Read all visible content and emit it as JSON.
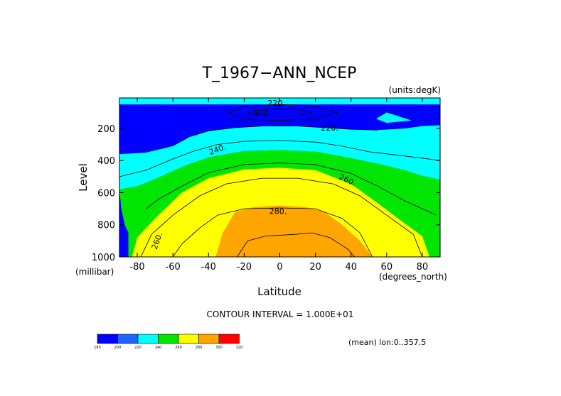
{
  "chart_data": {
    "type": "heatmap",
    "subtype": "filled-contour",
    "title": "T_1967−ANN_NCEP",
    "units_label": "(units:degK)",
    "xlabel": "Latitude",
    "ylabel": "Level",
    "x_units_label": "(degrees_north)",
    "y_units_label": "(millibar)",
    "xlim": [
      -90,
      90
    ],
    "ylim": [
      1000,
      10
    ],
    "x_ticks": [
      -80,
      -60,
      -40,
      -20,
      0,
      20,
      40,
      60,
      80
    ],
    "x_tick_labels": [
      "-80",
      "-60",
      "-40",
      "-20",
      "0",
      "20",
      "40",
      "60",
      "80"
    ],
    "y_ticks": [
      200,
      400,
      600,
      800,
      1000
    ],
    "y_tick_labels": [
      "200",
      "400",
      "600",
      "800",
      "1000"
    ],
    "contour_interval_label": "CONTOUR INTERVAL = 1.000E+01",
    "mean_label": "(mean) lon:0..357.5",
    "contour_labels": [
      {
        "text": "220.",
        "x": -2,
        "y": 40,
        "rot": 0
      },
      {
        "text": "200.",
        "x": -10,
        "y": 100,
        "rot": 0
      },
      {
        "text": "220.",
        "x": 28,
        "y": 195,
        "rot": 0
      },
      {
        "text": "240.",
        "x": -35,
        "y": 330,
        "rot": -20
      },
      {
        "text": "260.",
        "x": 38,
        "y": 520,
        "rot": 25
      },
      {
        "text": "280.",
        "x": -1,
        "y": 715,
        "rot": 0
      },
      {
        "text": "260.",
        "x": -69,
        "y": 900,
        "rot": -70
      }
    ],
    "levels": [
      {
        "label": "180",
        "color": "#0000ff"
      },
      {
        "label": "200",
        "color": "#1e64ff"
      },
      {
        "label": "220",
        "color": "#00ffff"
      },
      {
        "label": "240",
        "color": "#00e600"
      },
      {
        "label": "260",
        "color": "#ffff00"
      },
      {
        "label": "280",
        "color": "#ffa500"
      },
      {
        "label": "300",
        "color": "#ff0000"
      },
      {
        "label": "320",
        "color": ""
      }
    ],
    "regions": [
      {
        "value_range": "<200",
        "color": "#0000ff",
        "points": [
          [
            -18,
            100
          ],
          [
            -10,
            80
          ],
          [
            10,
            80
          ],
          [
            18,
            100
          ],
          [
            10,
            120
          ],
          [
            -10,
            120
          ]
        ]
      },
      {
        "value_range": "220-240",
        "color": "#00ffff",
        "points": [
          [
            -90,
            360
          ],
          [
            -75,
            350
          ],
          [
            -60,
            310
          ],
          [
            -50,
            250
          ],
          [
            -40,
            215
          ],
          [
            -25,
            195
          ],
          [
            -10,
            185
          ],
          [
            10,
            185
          ],
          [
            25,
            195
          ],
          [
            40,
            205
          ],
          [
            55,
            210
          ],
          [
            70,
            200
          ],
          [
            80,
            185
          ],
          [
            90,
            180
          ],
          [
            90,
            520
          ],
          [
            80,
            495
          ],
          [
            70,
            460
          ],
          [
            55,
            420
          ],
          [
            40,
            385
          ],
          [
            20,
            345
          ],
          [
            0,
            335
          ],
          [
            -20,
            340
          ],
          [
            -40,
            380
          ],
          [
            -55,
            440
          ],
          [
            -70,
            515
          ],
          [
            -80,
            560
          ],
          [
            -90,
            580
          ]
        ]
      },
      {
        "value_range": "220-240",
        "color": "#00ffff",
        "points": [
          [
            -90,
            10
          ],
          [
            90,
            10
          ],
          [
            90,
            50
          ],
          [
            -90,
            50
          ]
        ]
      },
      {
        "value_range": "220-240",
        "color": "#00ffff",
        "points": [
          [
            54,
            140
          ],
          [
            60,
            100
          ],
          [
            74,
            150
          ],
          [
            60,
            165
          ]
        ]
      },
      {
        "value_range": "240-260",
        "color": "#00e600",
        "points": [
          [
            -89,
            700
          ],
          [
            -90,
            580
          ],
          [
            -80,
            560
          ],
          [
            -70,
            515
          ],
          [
            -55,
            440
          ],
          [
            -40,
            380
          ],
          [
            -20,
            340
          ],
          [
            0,
            335
          ],
          [
            20,
            345
          ],
          [
            40,
            385
          ],
          [
            55,
            420
          ],
          [
            70,
            460
          ],
          [
            80,
            495
          ],
          [
            90,
            520
          ],
          [
            90,
            1000
          ],
          [
            -85,
            1000
          ],
          [
            -85,
            850
          ],
          [
            -87,
            800
          ]
        ]
      },
      {
        "value_range": "260-270",
        "color": "#ffff00",
        "points": [
          [
            -83,
            1000
          ],
          [
            -80,
            880
          ],
          [
            -70,
            760
          ],
          [
            -55,
            600
          ],
          [
            -40,
            510
          ],
          [
            -20,
            455
          ],
          [
            0,
            445
          ],
          [
            20,
            460
          ],
          [
            40,
            545
          ],
          [
            55,
            665
          ],
          [
            70,
            790
          ],
          [
            80,
            870
          ],
          [
            84,
            1000
          ]
        ]
      },
      {
        "value_range": "270-280",
        "color": "#ffff00",
        "points": [
          [
            -71,
            1000
          ],
          [
            -65,
            880
          ],
          [
            -55,
            780
          ],
          [
            -40,
            640
          ],
          [
            -20,
            555
          ],
          [
            0,
            540
          ],
          [
            20,
            560
          ],
          [
            40,
            660
          ],
          [
            55,
            780
          ],
          [
            65,
            880
          ],
          [
            72,
            1000
          ]
        ]
      },
      {
        "value_range": "280-290",
        "color": "#ffa500",
        "points": [
          [
            -36,
            1000
          ],
          [
            -32,
            850
          ],
          [
            -25,
            720
          ],
          [
            -15,
            690
          ],
          [
            0,
            680
          ],
          [
            15,
            690
          ],
          [
            25,
            720
          ],
          [
            35,
            800
          ],
          [
            45,
            900
          ],
          [
            52,
            1000
          ]
        ]
      },
      {
        "value_range": "290-300",
        "color": "#ffa500",
        "points": [
          [
            -24,
            1000
          ],
          [
            -18,
            900
          ],
          [
            -8,
            870
          ],
          [
            8,
            860
          ],
          [
            18,
            850
          ],
          [
            28,
            880
          ],
          [
            38,
            950
          ],
          [
            42,
            1000
          ]
        ]
      }
    ],
    "contour_lines": [
      [
        [
          -18,
          100
        ],
        [
          -10,
          80
        ],
        [
          10,
          80
        ],
        [
          18,
          100
        ],
        [
          10,
          120
        ],
        [
          -10,
          120
        ],
        [
          -18,
          100
        ]
      ],
      [
        [
          -28,
          100
        ],
        [
          -20,
          60
        ],
        [
          0,
          50
        ],
        [
          20,
          60
        ],
        [
          32,
          100
        ],
        [
          20,
          140
        ],
        [
          0,
          150
        ],
        [
          -20,
          140
        ],
        [
          -28,
          100
        ]
      ],
      [
        [
          -50,
          250
        ],
        [
          -40,
          215
        ],
        [
          -25,
          195
        ],
        [
          -10,
          185
        ],
        [
          10,
          185
        ],
        [
          25,
          195
        ],
        [
          40,
          205
        ],
        [
          55,
          210
        ]
      ],
      [
        [
          -90,
          500
        ],
        [
          -75,
          460
        ],
        [
          -60,
          390
        ],
        [
          -48,
          340
        ],
        [
          -35,
          300
        ],
        [
          -20,
          280
        ],
        [
          0,
          275
        ],
        [
          20,
          285
        ],
        [
          35,
          310
        ],
        [
          50,
          345
        ],
        [
          65,
          365
        ],
        [
          80,
          385
        ],
        [
          90,
          400
        ]
      ],
      [
        [
          -75,
          700
        ],
        [
          -68,
          640
        ],
        [
          -55,
          560
        ],
        [
          -40,
          475
        ],
        [
          -20,
          425
        ],
        [
          0,
          415
        ],
        [
          20,
          425
        ],
        [
          40,
          480
        ],
        [
          55,
          560
        ],
        [
          70,
          650
        ],
        [
          80,
          700
        ],
        [
          88,
          740
        ]
      ],
      [
        [
          -78,
          1000
        ],
        [
          -72,
          860
        ],
        [
          -60,
          740
        ],
        [
          -45,
          620
        ],
        [
          -30,
          545
        ],
        [
          -10,
          510
        ],
        [
          10,
          510
        ],
        [
          30,
          545
        ],
        [
          45,
          620
        ],
        [
          60,
          740
        ],
        [
          75,
          860
        ],
        [
          80,
          1000
        ]
      ],
      [
        [
          -60,
          1000
        ],
        [
          -55,
          920
        ],
        [
          -45,
          820
        ],
        [
          -35,
          740
        ],
        [
          -20,
          700
        ],
        [
          0,
          695
        ],
        [
          20,
          700
        ],
        [
          35,
          760
        ],
        [
          45,
          850
        ],
        [
          52,
          1000
        ]
      ],
      [
        [
          -24,
          1000
        ],
        [
          -18,
          900
        ],
        [
          -8,
          870
        ],
        [
          8,
          860
        ],
        [
          18,
          850
        ],
        [
          28,
          880
        ],
        [
          38,
          950
        ],
        [
          42,
          1000
        ]
      ]
    ]
  }
}
